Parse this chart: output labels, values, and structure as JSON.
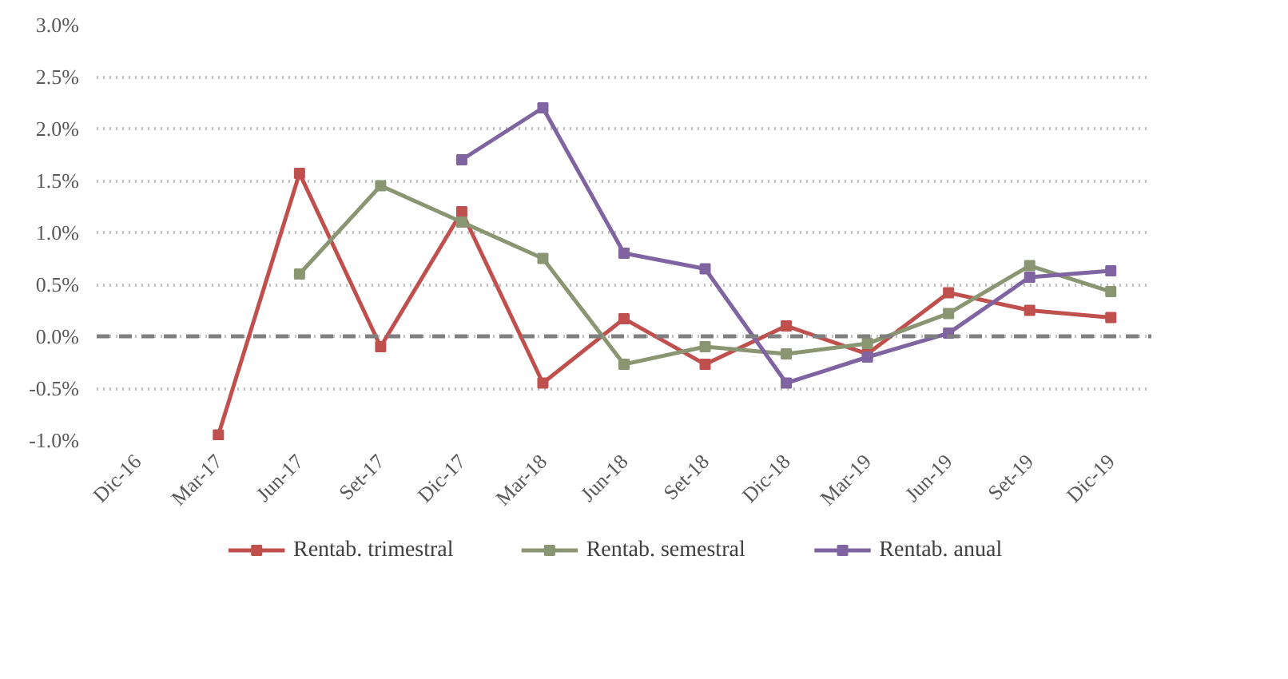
{
  "chart_data": {
    "type": "line",
    "categories": [
      "Dic-16",
      "Mar-17",
      "Jun-17",
      "Set-17",
      "Dic-17",
      "Mar-18",
      "Jun-18",
      "Set-18",
      "Dic-18",
      "Mar-19",
      "Jun-19",
      "Set-19",
      "Dic-19"
    ],
    "series": [
      {
        "name": "Rentab. trimestral",
        "color": "#c0504d",
        "values": [
          null,
          -0.95,
          1.57,
          -0.1,
          1.2,
          -0.45,
          0.17,
          -0.27,
          0.1,
          -0.17,
          0.42,
          0.25,
          0.18
        ]
      },
      {
        "name": "Rentab. semestral",
        "color": "#8a9572",
        "values": [
          null,
          null,
          0.6,
          1.45,
          1.1,
          0.75,
          -0.27,
          -0.1,
          -0.17,
          -0.07,
          0.22,
          0.68,
          0.43
        ]
      },
      {
        "name": "Rentab. anual",
        "color": "#8064a2",
        "values": [
          null,
          null,
          null,
          null,
          1.7,
          2.2,
          0.8,
          0.65,
          -0.45,
          -0.2,
          0.03,
          0.57,
          0.63
        ]
      }
    ],
    "ylim": [
      -1.0,
      3.0
    ],
    "yticks": [
      {
        "value": -1,
        "label": "-1.0%"
      },
      {
        "value": -0.5,
        "label": "-0.5%"
      },
      {
        "value": 0,
        "label": "0.0%"
      },
      {
        "value": 0.5,
        "label": "0.5%"
      },
      {
        "value": 1,
        "label": "1.0%"
      },
      {
        "value": 1.5,
        "label": "1.5%"
      },
      {
        "value": 2,
        "label": "2.0%"
      },
      {
        "value": 2.5,
        "label": "2.5%"
      },
      {
        "value": 3,
        "label": "3.0%"
      }
    ],
    "ref_lines": [
      {
        "axis": "y",
        "value": 0,
        "label": null,
        "color": "#7f7f7f",
        "line_style": "dashed"
      }
    ],
    "grid": "y",
    "legend": "bottom",
    "marker": "square",
    "line_style": "solid"
  }
}
